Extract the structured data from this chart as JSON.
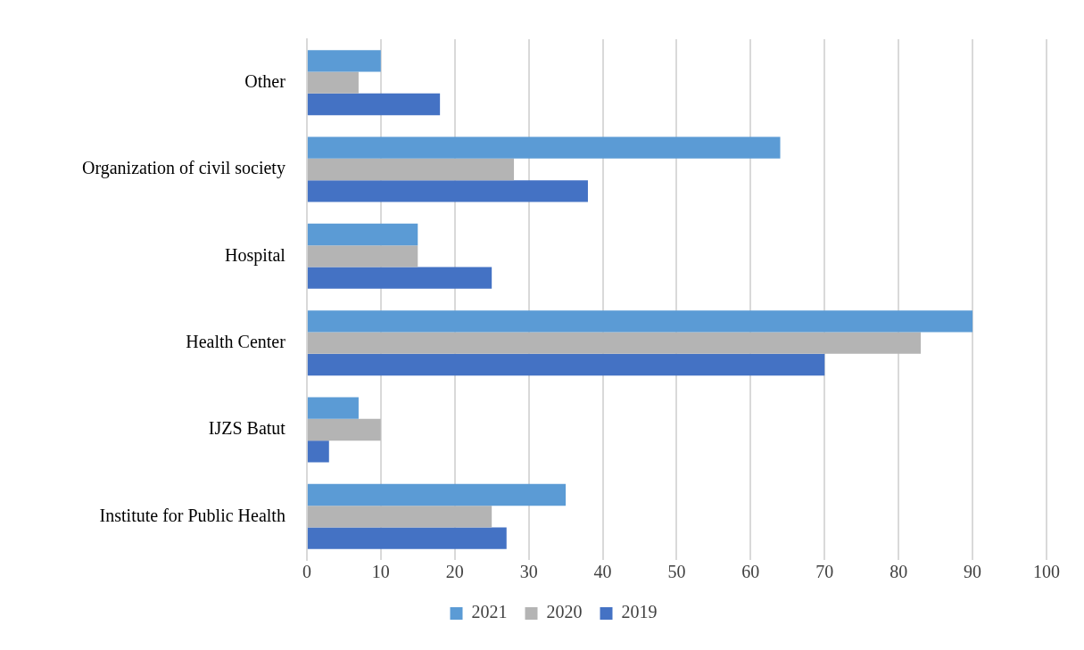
{
  "chart_data": {
    "type": "bar",
    "orientation": "horizontal",
    "categories": [
      "Other",
      "Organization of civil society",
      "Hospital",
      "Health Center",
      "IJZS Batut",
      "Institute for Public Health"
    ],
    "series": [
      {
        "name": "2021",
        "color": "#5b9bd5",
        "values": [
          10,
          64,
          15,
          90,
          7,
          35
        ]
      },
      {
        "name": "2020",
        "color": "#b4b4b4",
        "values": [
          7,
          28,
          15,
          83,
          10,
          25
        ]
      },
      {
        "name": "2019",
        "color": "#4472c4",
        "values": [
          18,
          38,
          25,
          70,
          3,
          27
        ]
      }
    ],
    "xlim": [
      0,
      100
    ],
    "xticks": [
      0,
      10,
      20,
      30,
      40,
      50,
      60,
      70,
      80,
      90,
      100
    ],
    "grid": "x",
    "legend": "bottom"
  }
}
